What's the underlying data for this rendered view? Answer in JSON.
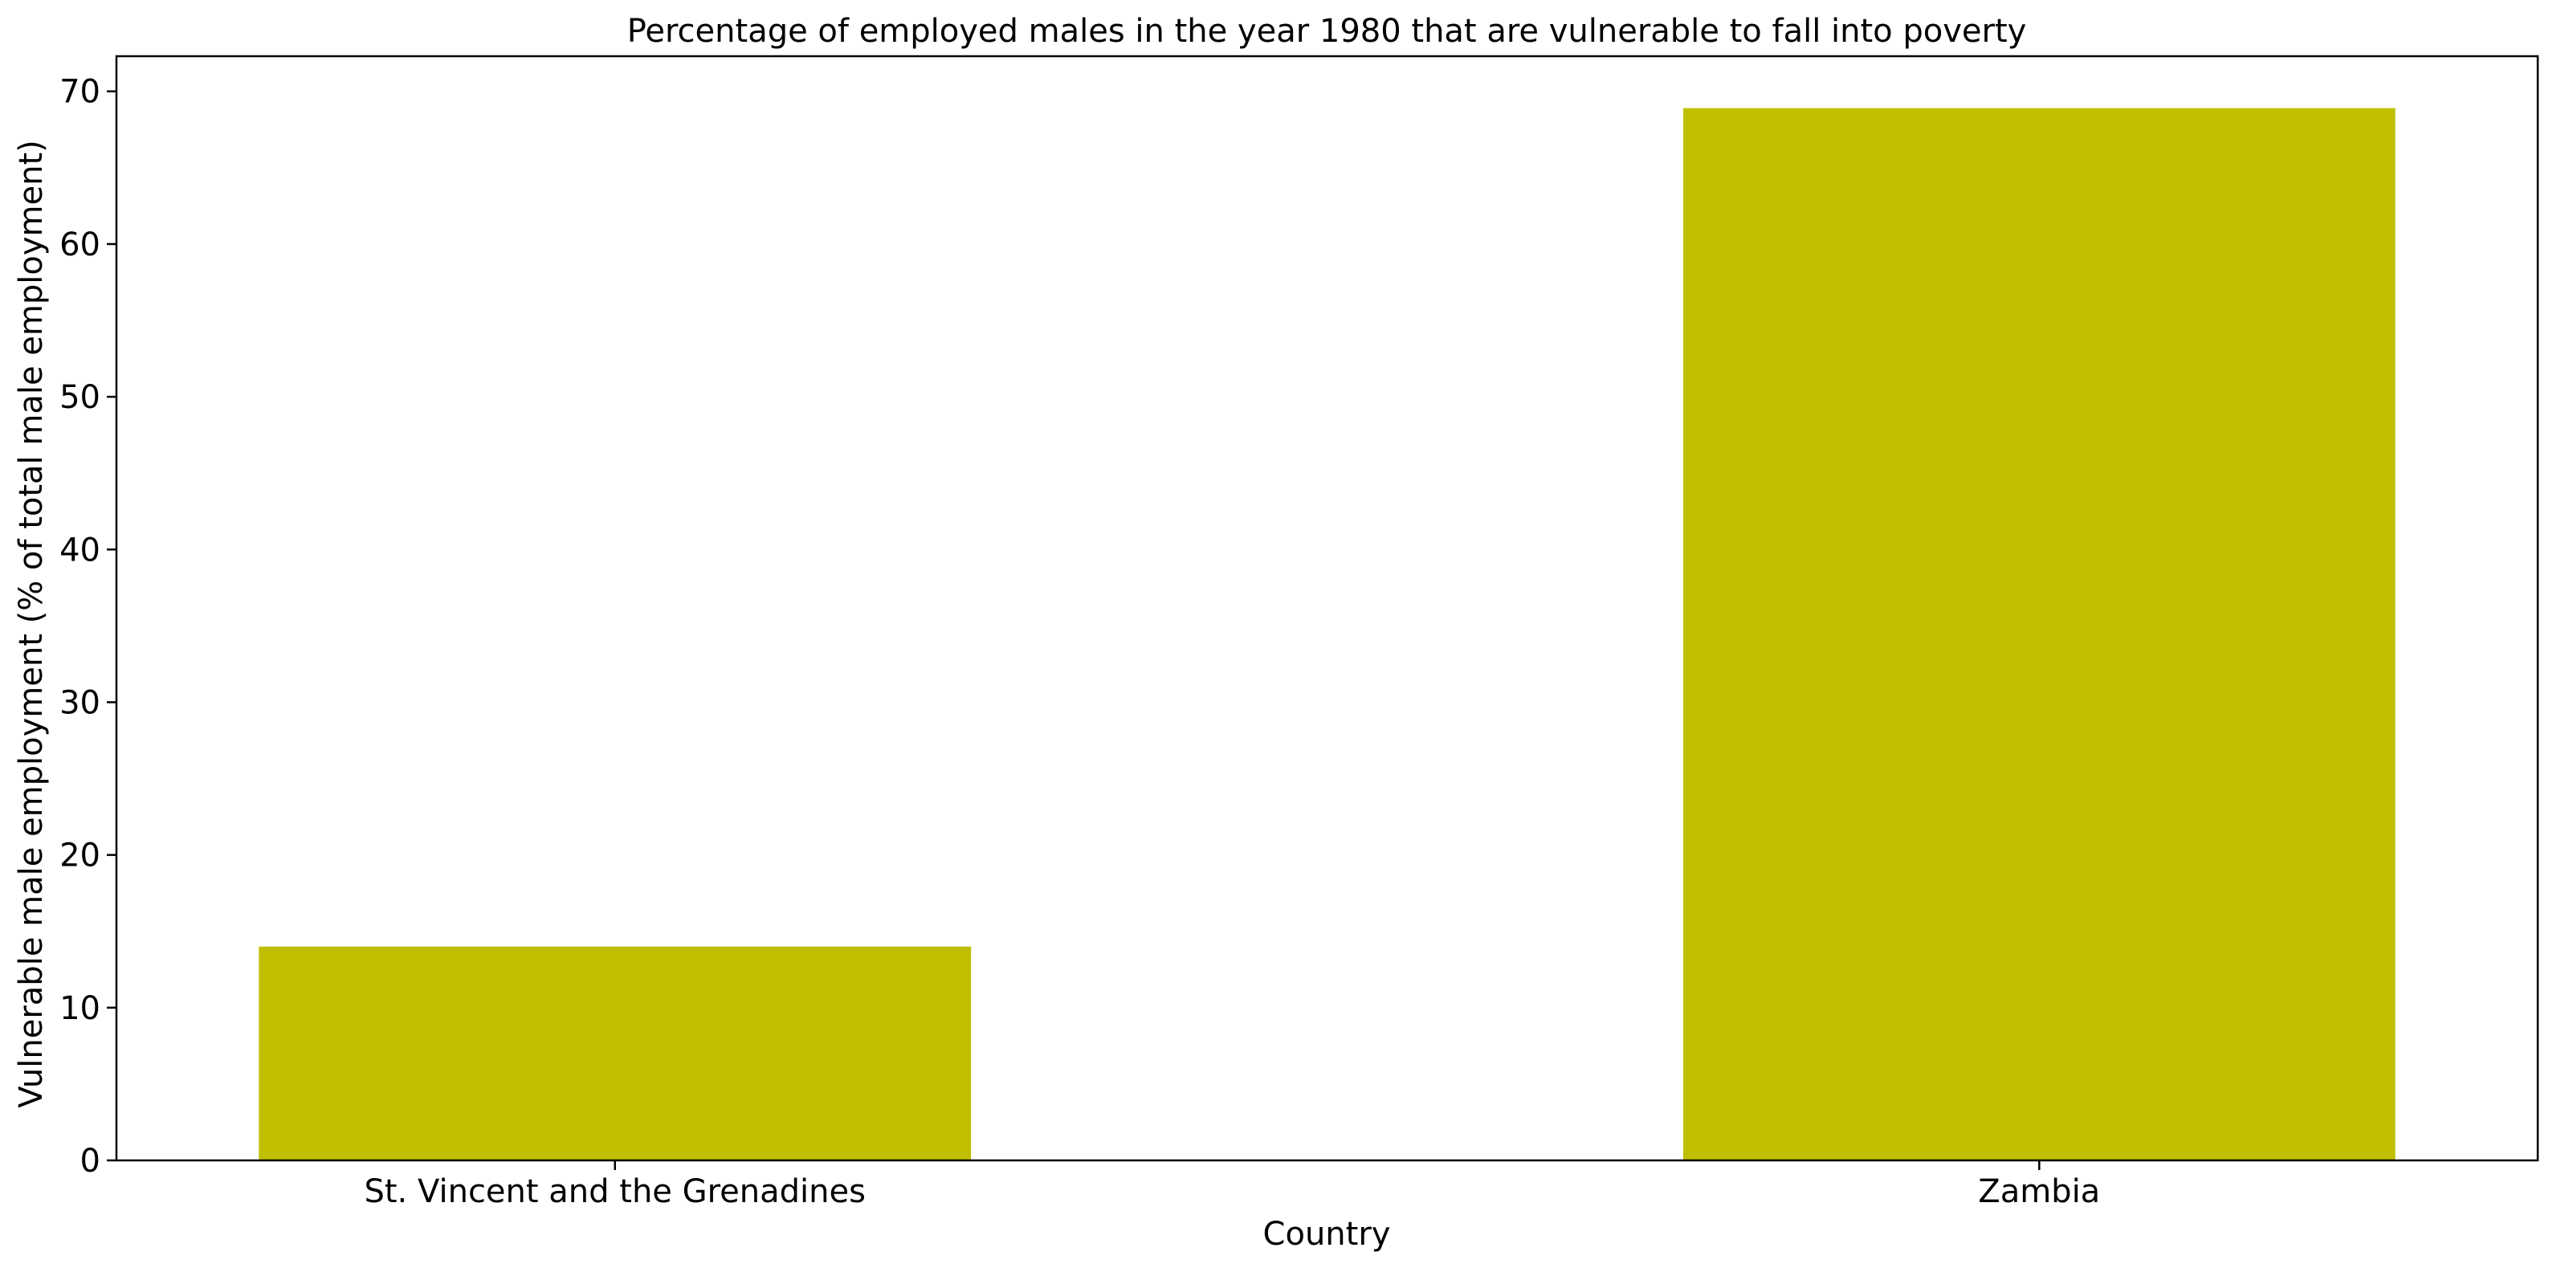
{
  "chart_data": {
    "type": "bar",
    "title": "Percentage of employed males in the year 1980 that are vulnerable to fall into poverty",
    "xlabel": "Country",
    "ylabel": "Vulnerable male employment (% of total male employment)",
    "categories": [
      "St. Vincent and the Grenadines",
      "Zambia"
    ],
    "values": [
      14.0,
      68.9
    ],
    "ylim": [
      0,
      72.3
    ],
    "yticks": [
      0,
      10,
      20,
      30,
      40,
      50,
      60,
      70
    ],
    "grid": false,
    "bar_color": "#bfbf00"
  }
}
